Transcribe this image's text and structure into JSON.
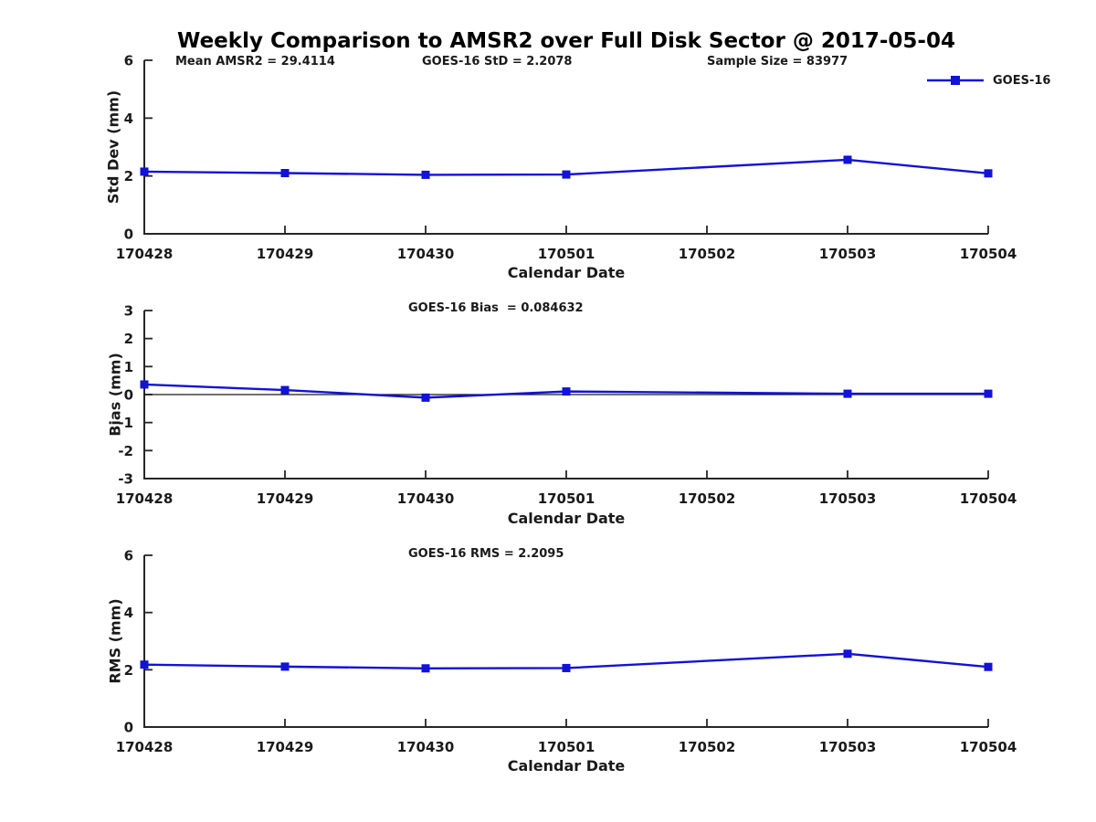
{
  "figure": {
    "title": "Weekly Comparison to AMSR2 over Full Disk Sector @ 2017-05-04",
    "legend": {
      "label": "GOES-16",
      "position": "top-right",
      "marker": "filled-square"
    },
    "colors": {
      "series": "#1212d8",
      "axis": "#262626",
      "text": "#1a1a1a",
      "zero_line": "#1a1a1a",
      "background": "#ffffff"
    }
  },
  "chart_data": [
    {
      "type": "line",
      "name": "std-dev-subplot",
      "annotations": [
        "Mean AMSR2 = 29.4114",
        "GOES-16 StD = 2.2078",
        "Sample Size = 83977"
      ],
      "xlabel": "Calendar Date",
      "ylabel": "Std Dev (mm)",
      "categories": [
        "170428",
        "170429",
        "170430",
        "170501",
        "170502",
        "170503",
        "170504"
      ],
      "series": [
        {
          "name": "GOES-16",
          "values": [
            2.15,
            2.1,
            2.04,
            2.05,
            null,
            2.56,
            2.09
          ]
        }
      ],
      "ylim": [
        0,
        6
      ],
      "yticks": [
        0,
        2,
        4,
        6
      ],
      "grid": false,
      "zero_line": false,
      "legend_position": "top-right",
      "marker": "square"
    },
    {
      "type": "line",
      "name": "bias-subplot",
      "annotations": [
        "GOES-16 Bias  = 0.084632"
      ],
      "xlabel": "Calendar Date",
      "ylabel": "Bias (mm)",
      "categories": [
        "170428",
        "170429",
        "170430",
        "170501",
        "170502",
        "170503",
        "170504"
      ],
      "series": [
        {
          "name": "GOES-16",
          "values": [
            0.36,
            0.16,
            -0.11,
            0.11,
            null,
            0.03,
            0.03
          ]
        }
      ],
      "ylim": [
        -3,
        3
      ],
      "yticks": [
        -3,
        -2,
        -1,
        0,
        1,
        2,
        3
      ],
      "grid": false,
      "zero_line": true,
      "legend_position": "none",
      "marker": "square"
    },
    {
      "type": "line",
      "name": "rms-subplot",
      "annotations": [
        "GOES-16 RMS = 2.2095"
      ],
      "xlabel": "Calendar Date",
      "ylabel": "RMS (mm)",
      "categories": [
        "170428",
        "170429",
        "170430",
        "170501",
        "170502",
        "170503",
        "170504"
      ],
      "series": [
        {
          "name": "GOES-16",
          "values": [
            2.18,
            2.11,
            2.05,
            2.06,
            null,
            2.56,
            2.1
          ]
        }
      ],
      "ylim": [
        0,
        6
      ],
      "yticks": [
        0,
        2,
        4,
        6
      ],
      "grid": false,
      "zero_line": false,
      "legend_position": "none",
      "marker": "square"
    }
  ]
}
